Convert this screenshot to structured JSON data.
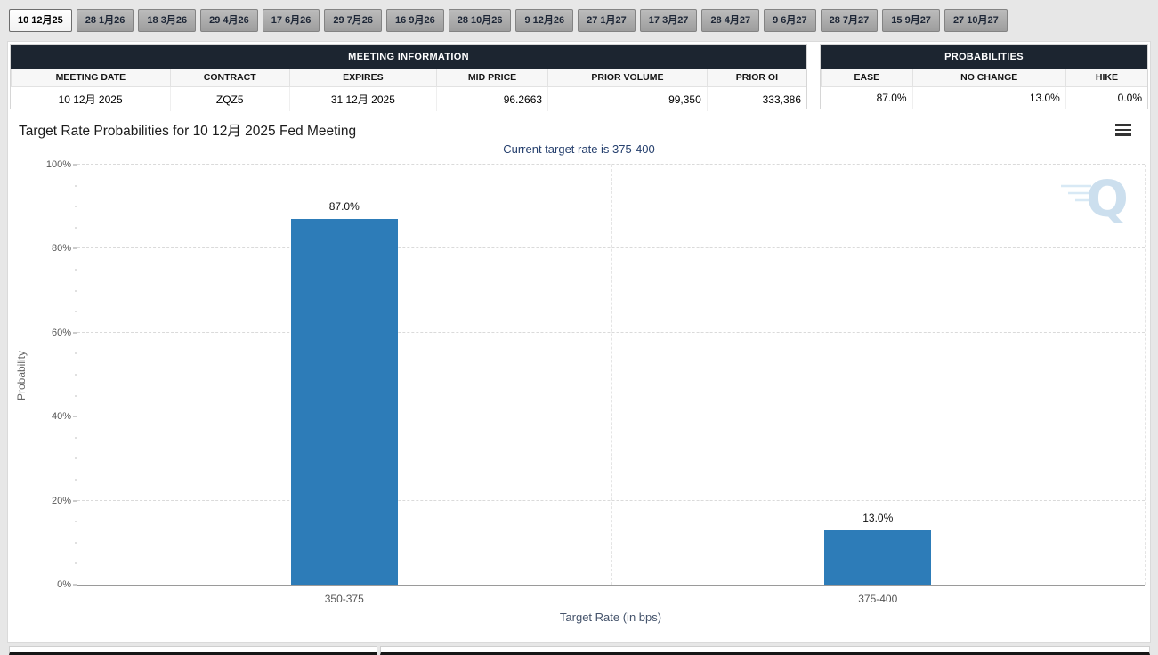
{
  "tabs": [
    {
      "label": "10 12月25",
      "active": true
    },
    {
      "label": "28 1月26",
      "active": false
    },
    {
      "label": "18 3月26",
      "active": false
    },
    {
      "label": "29 4月26",
      "active": false
    },
    {
      "label": "17 6月26",
      "active": false
    },
    {
      "label": "29 7月26",
      "active": false
    },
    {
      "label": "16 9月26",
      "active": false
    },
    {
      "label": "28 10月26",
      "active": false
    },
    {
      "label": "9 12月26",
      "active": false
    },
    {
      "label": "27 1月27",
      "active": false
    },
    {
      "label": "17 3月27",
      "active": false
    },
    {
      "label": "28 4月27",
      "active": false
    },
    {
      "label": "9 6月27",
      "active": false
    },
    {
      "label": "28 7月27",
      "active": false
    },
    {
      "label": "15 9月27",
      "active": false
    },
    {
      "label": "27 10月27",
      "active": false
    }
  ],
  "meeting_info": {
    "title": "MEETING INFORMATION",
    "columns": [
      "MEETING DATE",
      "CONTRACT",
      "EXPIRES",
      "MID PRICE",
      "PRIOR VOLUME",
      "PRIOR OI"
    ],
    "values": [
      "10 12月 2025",
      "ZQZ5",
      "31 12月 2025",
      "96.2663",
      "99,350",
      "333,386"
    ]
  },
  "probabilities": {
    "title": "PROBABILITIES",
    "columns": [
      "EASE",
      "NO CHANGE",
      "HIKE"
    ],
    "values": [
      "87.0%",
      "13.0%",
      "0.0%"
    ]
  },
  "chart_data": {
    "type": "bar",
    "title": "Target Rate Probabilities for 10 12月 2025 Fed Meeting",
    "subtitle": "Current target rate is 375-400",
    "categories": [
      "350-375",
      "375-400"
    ],
    "values": [
      87.0,
      13.0
    ],
    "data_labels": [
      "87.0%",
      "13.0%"
    ],
    "xlabel": "Target Rate (in bps)",
    "ylabel": "Probability",
    "ylim": [
      0,
      100
    ],
    "y_tick_labels": [
      "0%",
      "20%",
      "40%",
      "60%",
      "80%",
      "100%"
    ],
    "grid": "dashed",
    "legend": "none",
    "bar_color": "#2d7cb8",
    "watermark_letter": "Q"
  }
}
